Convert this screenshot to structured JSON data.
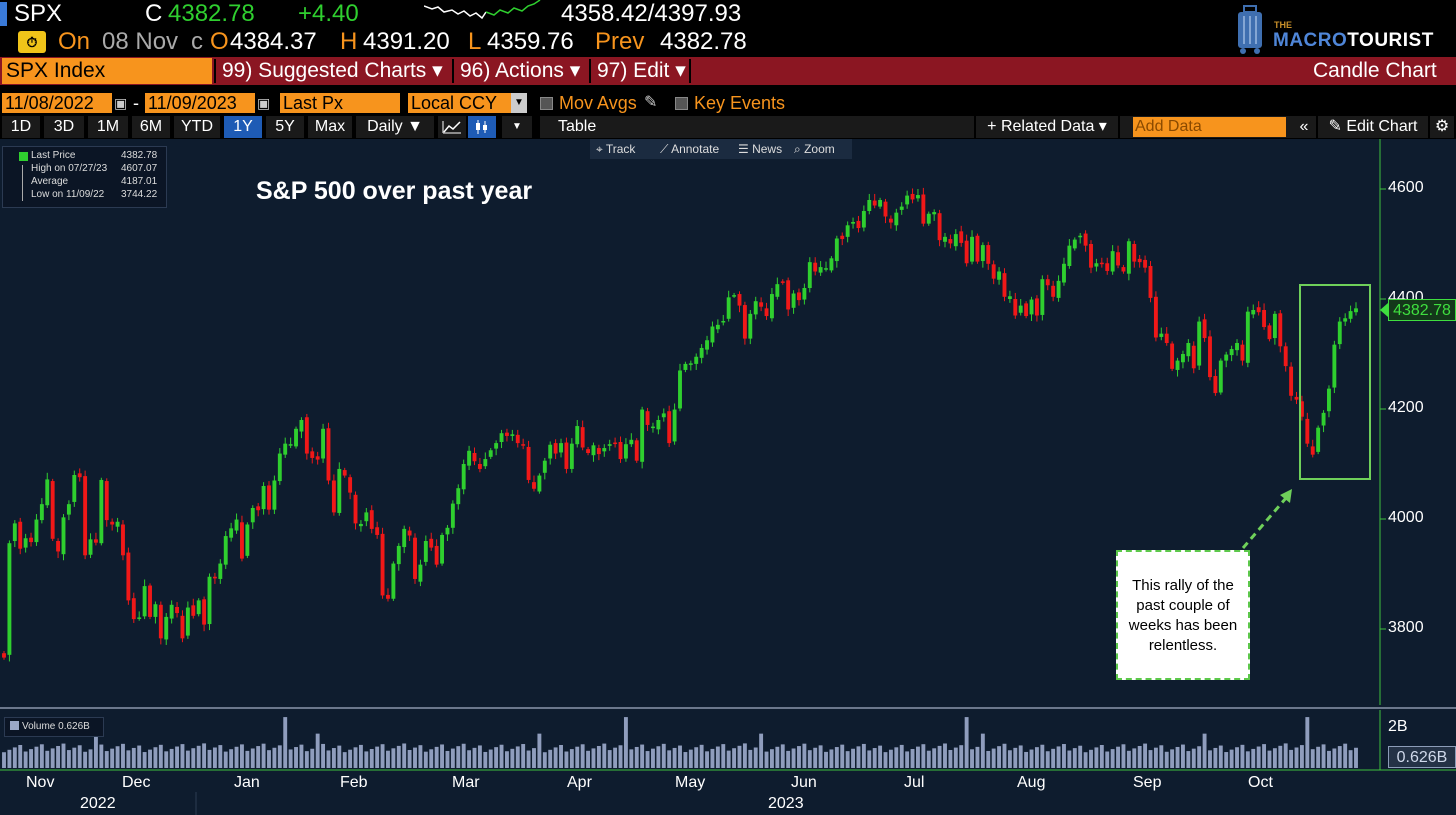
{
  "quote": {
    "ticker": "SPX",
    "close_label": "C",
    "close": "4382.78",
    "change": "+4.40",
    "range": "4358.42/4397.93",
    "on_label": "On",
    "date": "08 Nov",
    "c_label": "c",
    "open_label": "O",
    "open": "4384.37",
    "high_label": "H",
    "high": "4391.20",
    "low_label": "L",
    "low": "4359.76",
    "prev_label": "Prev",
    "prev": "4382.78"
  },
  "logo": {
    "the": "THE",
    "macro": "MACRO",
    "tourist": "TOURIST"
  },
  "menubar": {
    "security": "SPX Index",
    "suggested": "99) Suggested Charts ▾",
    "actions": "96) Actions ▾",
    "edit": "97) Edit ▾",
    "chart_type": "Candle Chart"
  },
  "params": {
    "start_date": "11/08/2022",
    "dash": "-",
    "end_date": "11/09/2023",
    "field": "Last Px",
    "currency": "Local CCY",
    "mov_avgs": "Mov Avgs",
    "key_events": "Key Events"
  },
  "toolbar": {
    "periods": [
      "1D",
      "3D",
      "1M",
      "6M",
      "YTD",
      "1Y",
      "5Y",
      "Max"
    ],
    "active_period": "1Y",
    "frequency": "Daily ▼",
    "table": "Table",
    "related": "+ Related Data ▾",
    "add_data": "Add Data",
    "collapse": "«",
    "edit_chart": "Edit Chart"
  },
  "chart_tools": [
    "Track",
    "Annotate",
    "News",
    "Zoom"
  ],
  "legend": [
    {
      "label": "Last Price",
      "value": "4382.78"
    },
    {
      "label": "High on 07/27/23",
      "value": "4607.07"
    },
    {
      "label": "Average",
      "value": "4187.01"
    },
    {
      "label": "Low on 11/09/22",
      "value": "3744.22"
    }
  ],
  "colors": {
    "up": "#2fcf2f",
    "down": "#f01818",
    "accent": "#f7941d",
    "menubar": "#8b1622",
    "background": "#0e1c2e"
  },
  "chart_data": {
    "type": "candlestick",
    "title": "S&P 500 over past year",
    "x_months": [
      "Nov",
      "Dec",
      "Jan",
      "Feb",
      "Mar",
      "Apr",
      "May",
      "Jun",
      "Jul",
      "Aug",
      "Sep",
      "Oct"
    ],
    "x_years": [
      "2022",
      "2023"
    ],
    "y_ticks": [
      3800,
      4000,
      4200,
      4400,
      4600
    ],
    "ylim": [
      3640,
      4670
    ],
    "last_price_tag": "4382.78",
    "volume_label": "Volume 0.626B",
    "volume_ticks": [
      "2B"
    ],
    "volume_last_tag": "0.626B",
    "volume_ylim": [
      0,
      2.2
    ],
    "annotation": "This rally of the past couple of weeks has been relentless.",
    "closes": [
      3748,
      3956,
      3992,
      3946,
      3965,
      3958,
      3999,
      4027,
      4072,
      3964,
      3941,
      4003,
      4027,
      4080,
      4076,
      3934,
      3963,
      3957,
      4071,
      3998,
      3990,
      3995,
      3934,
      3852,
      3818,
      3821,
      3878,
      3822,
      3845,
      3783,
      3822,
      3844,
      3829,
      3783,
      3839,
      3824,
      3852,
      3808,
      3895,
      3892,
      3919,
      3969,
      3983,
      3999,
      3928,
      3990,
      4020,
      4016,
      4060,
      4017,
      4070,
      4119,
      4137,
      4136,
      4164,
      4180,
      4119,
      4111,
      4108,
      4164,
      4070,
      4012,
      4091,
      4079,
      4048,
      3992,
      3991,
      4012,
      3982,
      3971,
      3861,
      3855,
      3919,
      3951,
      3982,
      3970,
      3891,
      3917,
      3960,
      3948,
      3917,
      3971,
      3984,
      4028,
      4056,
      4100,
      4124,
      4105,
      4091,
      4109,
      4125,
      4138,
      4156,
      4151,
      4154,
      4138,
      4134,
      4071,
      4055,
      4079,
      4106,
      4135,
      4119,
      4138,
      4091,
      4137,
      4169,
      4130,
      4120,
      4134,
      4118,
      4129,
      4136,
      4138,
      4109,
      4136,
      4144,
      4106,
      4199,
      4171,
      4168,
      4180,
      4192,
      4138,
      4199,
      4270,
      4282,
      4283,
      4295,
      4311,
      4325,
      4350,
      4353,
      4360,
      4403,
      4407,
      4388,
      4328,
      4373,
      4396,
      4386,
      4369,
      4409,
      4427,
      4430,
      4381,
      4410,
      4398,
      4420,
      4467,
      4450,
      4458,
      4456,
      4474,
      4510,
      4509,
      4534,
      4540,
      4529,
      4560,
      4580,
      4570,
      4580,
      4550,
      4539,
      4557,
      4568,
      4588,
      4581,
      4589,
      4537,
      4555,
      4558,
      4507,
      4513,
      4501,
      4518,
      4502,
      4465,
      4513,
      4468,
      4498,
      4464,
      4437,
      4450,
      4404,
      4405,
      4370,
      4388,
      4369,
      4399,
      4370,
      4436,
      4425,
      4404,
      4433,
      4464,
      4497,
      4508,
      4515,
      4497,
      4457,
      4465,
      4465,
      4451,
      4487,
      4461,
      4450,
      4505,
      4468,
      4467,
      4457,
      4402,
      4330,
      4337,
      4320,
      4273,
      4288,
      4300,
      4320,
      4274,
      4359,
      4329,
      4258,
      4229,
      4288,
      4299,
      4309,
      4320,
      4288,
      4377,
      4380,
      4376,
      4349,
      4327,
      4373,
      4314,
      4278,
      4224,
      4217,
      4186,
      4137,
      4117,
      4166,
      4193,
      4237,
      4317,
      4359,
      4365,
      4378,
      4383
    ]
  }
}
